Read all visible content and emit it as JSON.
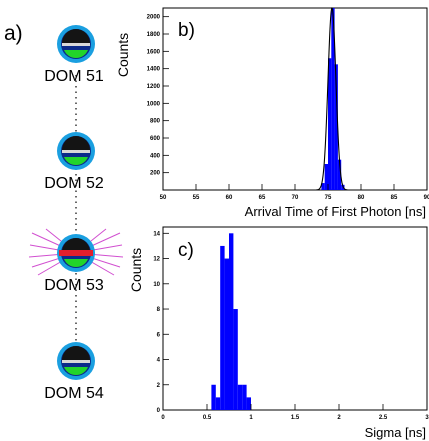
{
  "panel_a": {
    "label": "a)",
    "doms": [
      "DOM 51",
      "DOM 52",
      "DOM 53",
      "DOM 54"
    ],
    "dom_shell_color": "#1a9fe0",
    "dom_body_color": "#0b2a8a",
    "dom_pmt_color": "#141414",
    "dom_base_color": "#22d42a",
    "hit_dom_color": "#e21f2c",
    "light_ray_color": "#d14fd0"
  },
  "chart_data": [
    {
      "type": "bar",
      "panel_label": "b)",
      "xlabel": "Arrival Time of First Photon [ns]",
      "ylabel": "Counts",
      "xlim": [
        50,
        90
      ],
      "ylim": [
        0,
        2100
      ],
      "xticks": [
        50,
        55,
        60,
        65,
        70,
        75,
        80,
        85,
        90
      ],
      "yticks": [
        200,
        400,
        600,
        800,
        1000,
        1200,
        1400,
        1600,
        1800,
        2000
      ],
      "bin_width": 0.5,
      "bins": [
        {
          "x": 74.0,
          "y": 80
        },
        {
          "x": 74.5,
          "y": 300
        },
        {
          "x": 75.0,
          "y": 1520
        },
        {
          "x": 75.5,
          "y": 2100
        },
        {
          "x": 76.0,
          "y": 1450
        },
        {
          "x": 76.5,
          "y": 350
        },
        {
          "x": 77.0,
          "y": 60
        }
      ],
      "fit": {
        "type": "gaussian",
        "mean": 75.6,
        "sigma": 0.6,
        "amplitude": 2100
      },
      "bar_color": "#0000ff",
      "grid": false
    },
    {
      "type": "bar",
      "panel_label": "c)",
      "xlabel": "Sigma [ns]",
      "ylabel": "Counts",
      "xlim": [
        0,
        3
      ],
      "ylim": [
        0,
        14.5
      ],
      "xticks": [
        0,
        0.5,
        1,
        1.5,
        2,
        2.5,
        3
      ],
      "yticks": [
        0,
        2,
        4,
        6,
        8,
        10,
        12,
        14
      ],
      "bin_width": 0.05,
      "bins": [
        {
          "x": 0.55,
          "y": 2
        },
        {
          "x": 0.6,
          "y": 1
        },
        {
          "x": 0.65,
          "y": 13
        },
        {
          "x": 0.7,
          "y": 12
        },
        {
          "x": 0.75,
          "y": 14
        },
        {
          "x": 0.8,
          "y": 8
        },
        {
          "x": 0.85,
          "y": 2
        },
        {
          "x": 0.9,
          "y": 2
        },
        {
          "x": 0.95,
          "y": 1
        }
      ],
      "bar_color": "#0000ff",
      "grid": false
    }
  ]
}
